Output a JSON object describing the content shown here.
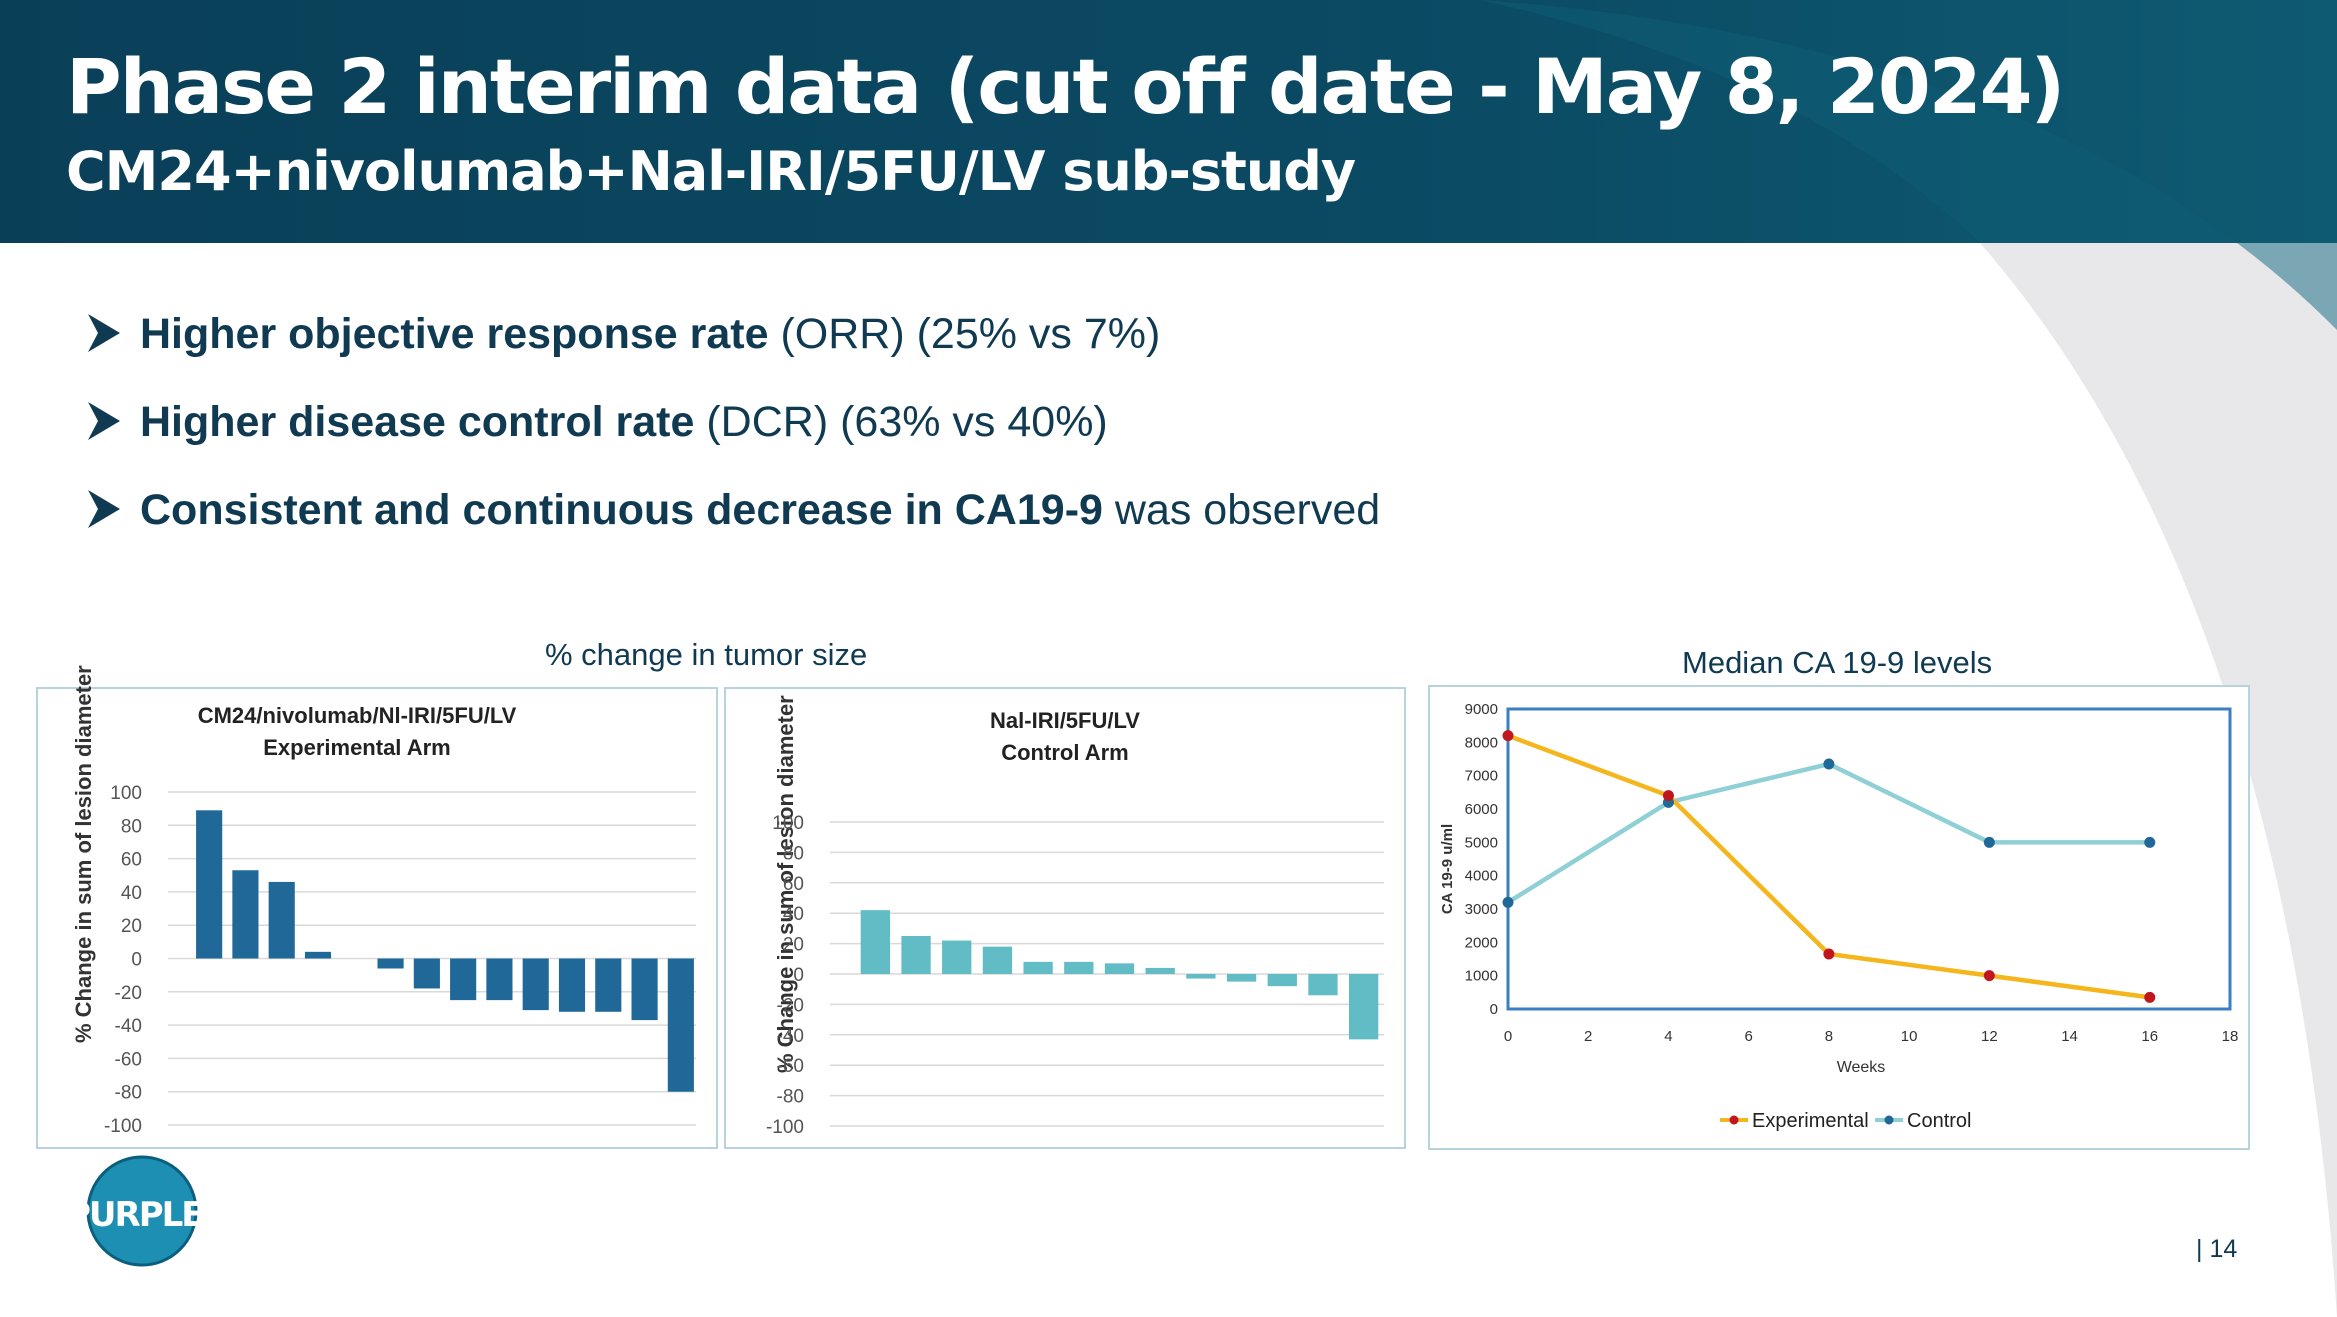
{
  "header": {
    "title": "Phase 2 interim data (cut off date - May 8, 2024)",
    "subtitle": "CM24+nivolumab+Nal-IRI/5FU/LV sub-study"
  },
  "bullets": [
    {
      "bold": "Higher objective response rate",
      "rest": " (ORR) (25% vs 7%)"
    },
    {
      "bold": "Higher disease control rate",
      "rest": " (DCR) (63% vs 40%)"
    },
    {
      "bold": "Consistent and continuous decrease in CA19-9",
      "rest": " was observed"
    }
  ],
  "captions": {
    "tumor": "% change in tumor size",
    "ca199": "Median CA 19-9 levels"
  },
  "colors": {
    "header_bg": "#0a4a62",
    "experimental_bar": "#1f6898",
    "control_bar": "#62bcc6",
    "experimental_line": "#f5b51c",
    "experimental_marker": "#c0161d",
    "control_line": "#8fcfd6",
    "control_marker": "#1f6898"
  },
  "logo": {
    "text": "PURPLE"
  },
  "page_number": "| 14",
  "chart_data": [
    {
      "type": "bar",
      "title": "CM24/nivolumab/Nl-IRI/5FU/LV",
      "subtitle": "Experimental Arm",
      "ylabel": "% Change in sum of lesion diameter",
      "ylim": [
        -100,
        100
      ],
      "yticks": [
        100,
        80,
        60,
        40,
        20,
        0,
        -20,
        -40,
        -60,
        -80,
        -100
      ],
      "values": [
        89,
        53,
        46,
        4,
        0,
        -6,
        -18,
        -25,
        -25,
        -31,
        -32,
        -32,
        -37,
        -80
      ]
    },
    {
      "type": "bar",
      "title": "Nal-IRI/5FU/LV",
      "subtitle": "Control Arm",
      "ylabel": "% Change in sum of lesion diameter",
      "ylim": [
        -100,
        100
      ],
      "yticks": [
        100,
        80,
        60,
        40,
        20,
        0,
        -20,
        -40,
        -60,
        -80,
        -100
      ],
      "values": [
        42,
        25,
        22,
        18,
        8,
        8,
        7,
        4,
        -3,
        -5,
        -8,
        -14,
        -43
      ]
    },
    {
      "type": "line",
      "xlabel": "Weeks",
      "ylabel": "CA 19-9 u/ml",
      "xlim": [
        0,
        18
      ],
      "ylim": [
        0,
        9000
      ],
      "xticks": [
        0,
        2,
        4,
        6,
        8,
        10,
        12,
        14,
        16,
        18
      ],
      "yticks": [
        0,
        1000,
        2000,
        3000,
        4000,
        5000,
        6000,
        7000,
        8000,
        9000
      ],
      "legend_position": "bottom",
      "series": [
        {
          "name": "Experimental",
          "x": [
            0,
            4,
            8,
            12,
            16
          ],
          "y": [
            8200,
            6400,
            1650,
            1000,
            350
          ]
        },
        {
          "name": "Control",
          "x": [
            0,
            4,
            8,
            12,
            16
          ],
          "y": [
            3200,
            6200,
            7350,
            5000,
            5000
          ]
        }
      ]
    }
  ]
}
